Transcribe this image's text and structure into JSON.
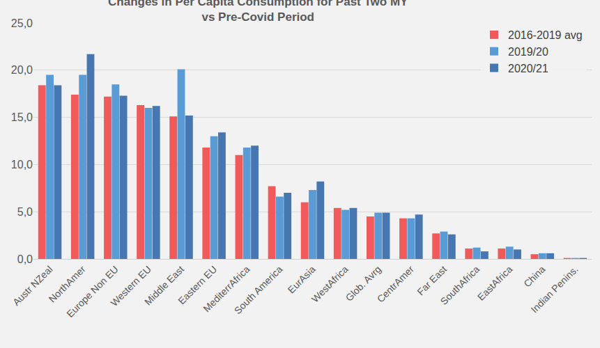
{
  "chart_data": {
    "type": "bar",
    "title": "Changes in Per Capita Consumption for Past Two MY\nvs Pre-Covid Period",
    "categories": [
      "Austr NZeal",
      "NorthAmer",
      "Europe Non EU",
      "Western EU",
      "Middle East",
      "Eastern EU",
      "MediterrAfrica",
      "South America",
      "EurAsia",
      "WestAfrica",
      "Glob. Avrg",
      "CentrAmer",
      "Far East",
      "SouthAfrica",
      "EastAfrica",
      "China",
      "Indian Penins."
    ],
    "series": [
      {
        "name": "2016-2019 avg",
        "color": "#f05a5b",
        "values": [
          18.4,
          17.4,
          17.2,
          16.3,
          15.1,
          11.8,
          11.0,
          7.7,
          6.0,
          5.4,
          4.5,
          4.3,
          2.7,
          1.1,
          1.1,
          0.5,
          0.1
        ]
      },
      {
        "name": "2019/20",
        "color": "#5b9bd5",
        "values": [
          19.5,
          19.5,
          18.5,
          16.0,
          20.1,
          13.0,
          11.8,
          6.6,
          7.3,
          5.2,
          4.9,
          4.3,
          2.9,
          1.2,
          1.3,
          0.6,
          0.1
        ]
      },
      {
        "name": "2020/21",
        "color": "#4677b0",
        "values": [
          18.4,
          21.7,
          17.3,
          16.2,
          15.2,
          13.4,
          12.0,
          7.0,
          8.2,
          5.4,
          4.9,
          4.7,
          2.6,
          0.8,
          1.0,
          0.6,
          0.1
        ]
      }
    ],
    "ylim": [
      0,
      25
    ],
    "yticks": [
      {
        "value": 0,
        "label": "0,0"
      },
      {
        "value": 5,
        "label": "5,0"
      },
      {
        "value": 10,
        "label": "10,0"
      },
      {
        "value": 15,
        "label": "15,0"
      },
      {
        "value": 20,
        "label": "20,0"
      },
      {
        "value": 25,
        "label": "25,0"
      }
    ],
    "grid": true,
    "legend": "top-right"
  }
}
